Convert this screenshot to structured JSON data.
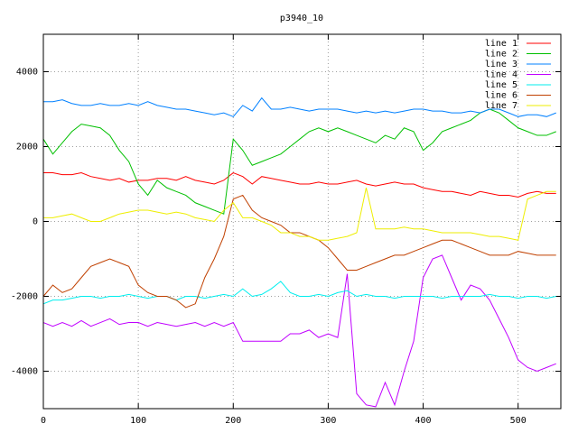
{
  "chart_data": {
    "type": "line",
    "title": "p3940_10",
    "x": [
      0,
      10,
      20,
      30,
      40,
      50,
      60,
      70,
      80,
      90,
      100,
      110,
      120,
      130,
      140,
      150,
      160,
      170,
      180,
      190,
      200,
      210,
      220,
      230,
      240,
      250,
      260,
      270,
      280,
      290,
      300,
      310,
      320,
      330,
      340,
      350,
      360,
      370,
      380,
      390,
      400,
      410,
      420,
      430,
      440,
      450,
      460,
      470,
      480,
      490,
      500,
      510,
      520,
      530,
      540
    ],
    "series": [
      {
        "name": "line 1",
        "color": "#ff0000",
        "values": [
          1300,
          1300,
          1250,
          1250,
          1300,
          1200,
          1150,
          1100,
          1150,
          1050,
          1100,
          1100,
          1150,
          1150,
          1100,
          1200,
          1100,
          1050,
          1000,
          1100,
          1300,
          1200,
          1000,
          1200,
          1150,
          1100,
          1050,
          1000,
          1000,
          1050,
          1000,
          1000,
          1050,
          1100,
          1000,
          950,
          1000,
          1050,
          1000,
          1000,
          900,
          850,
          800,
          800,
          750,
          700,
          800,
          750,
          700,
          700,
          650,
          750,
          800,
          750,
          750
        ]
      },
      {
        "name": "line 2",
        "color": "#00c000",
        "values": [
          2200,
          1800,
          2100,
          2400,
          2600,
          2550,
          2500,
          2300,
          1900,
          1600,
          1000,
          700,
          1100,
          900,
          800,
          700,
          500,
          400,
          300,
          200,
          2200,
          1900,
          1500,
          1600,
          1700,
          1800,
          2000,
          2200,
          2400,
          2500,
          2400,
          2500,
          2400,
          2300,
          2200,
          2100,
          2300,
          2200,
          2500,
          2400,
          1900,
          2100,
          2400,
          2500,
          2600,
          2700,
          2900,
          3000,
          2900,
          2700,
          2500,
          2400,
          2300,
          2300,
          2400
        ]
      },
      {
        "name": "line 3",
        "color": "#0080ff",
        "values": [
          3200,
          3200,
          3250,
          3150,
          3100,
          3100,
          3150,
          3100,
          3100,
          3150,
          3100,
          3200,
          3100,
          3050,
          3000,
          3000,
          2950,
          2900,
          2850,
          2900,
          2800,
          3100,
          2950,
          3300,
          3000,
          3000,
          3050,
          3000,
          2950,
          3000,
          3000,
          3000,
          2950,
          2900,
          2950,
          2900,
          2950,
          2900,
          2950,
          3000,
          3000,
          2950,
          2950,
          2900,
          2900,
          2950,
          2900,
          3000,
          3000,
          2900,
          2800,
          2850,
          2850,
          2800,
          2900
        ]
      },
      {
        "name": "line 4",
        "color": "#c000ff",
        "values": [
          -2700,
          -2800,
          -2700,
          -2800,
          -2650,
          -2800,
          -2700,
          -2600,
          -2750,
          -2700,
          -2700,
          -2800,
          -2700,
          -2750,
          -2800,
          -2750,
          -2700,
          -2800,
          -2700,
          -2800,
          -2700,
          -3200,
          -3200,
          -3200,
          -3200,
          -3200,
          -3000,
          -3000,
          -2900,
          -3100,
          -3000,
          -3100,
          -1400,
          -4600,
          -4900,
          -4950,
          -4300,
          -4900,
          -4000,
          -3200,
          -1500,
          -1000,
          -900,
          -1500,
          -2100,
          -1700,
          -1800,
          -2100,
          -2600,
          -3100,
          -3700,
          -3900,
          -4000,
          -3900,
          -3800
        ]
      },
      {
        "name": "line 5",
        "color": "#00eeee",
        "values": [
          -2200,
          -2100,
          -2100,
          -2050,
          -2000,
          -2000,
          -2050,
          -2000,
          -2000,
          -1950,
          -2000,
          -2050,
          -2000,
          -2000,
          -2100,
          -2000,
          -2000,
          -2050,
          -2000,
          -1950,
          -2000,
          -1800,
          -2000,
          -1950,
          -1800,
          -1600,
          -1900,
          -2000,
          -2000,
          -1950,
          -2000,
          -1900,
          -1850,
          -2000,
          -1950,
          -2000,
          -2000,
          -2050,
          -2000,
          -2000,
          -2000,
          -2000,
          -2050,
          -2000,
          -2000,
          -2000,
          -2000,
          -1950,
          -2000,
          -2000,
          -2050,
          -2000,
          -2000,
          -2050,
          -2000
        ]
      },
      {
        "name": "line 6",
        "color": "#c04000",
        "values": [
          -2000,
          -1700,
          -1900,
          -1800,
          -1500,
          -1200,
          -1100,
          -1000,
          -1100,
          -1200,
          -1700,
          -1900,
          -2000,
          -2000,
          -2100,
          -2300,
          -2200,
          -1500,
          -1000,
          -400,
          600,
          700,
          300,
          100,
          0,
          -100,
          -300,
          -300,
          -400,
          -500,
          -700,
          -1000,
          -1300,
          -1300,
          -1200,
          -1100,
          -1000,
          -900,
          -900,
          -800,
          -700,
          -600,
          -500,
          -500,
          -600,
          -700,
          -800,
          -900,
          -900,
          -900,
          -800,
          -850,
          -900,
          -900,
          -900
        ]
      },
      {
        "name": "line 7",
        "color": "#eeee00",
        "values": [
          100,
          100,
          150,
          200,
          100,
          0,
          0,
          100,
          200,
          250,
          300,
          300,
          250,
          200,
          250,
          200,
          100,
          50,
          0,
          300,
          500,
          100,
          100,
          0,
          -100,
          -300,
          -300,
          -400,
          -400,
          -500,
          -500,
          -450,
          -400,
          -300,
          900,
          -200,
          -200,
          -200,
          -150,
          -200,
          -200,
          -250,
          -300,
          -300,
          -300,
          -300,
          -350,
          -400,
          -400,
          -450,
          -500,
          600,
          700,
          800,
          800
        ]
      }
    ],
    "xlim": [
      0,
      545
    ],
    "ylim": [
      -5000,
      5000
    ],
    "xticks": [
      0,
      100,
      200,
      300,
      400,
      500
    ],
    "yticks": [
      -4000,
      -2000,
      0,
      2000,
      4000
    ],
    "grid": true,
    "legend": "top-right"
  }
}
